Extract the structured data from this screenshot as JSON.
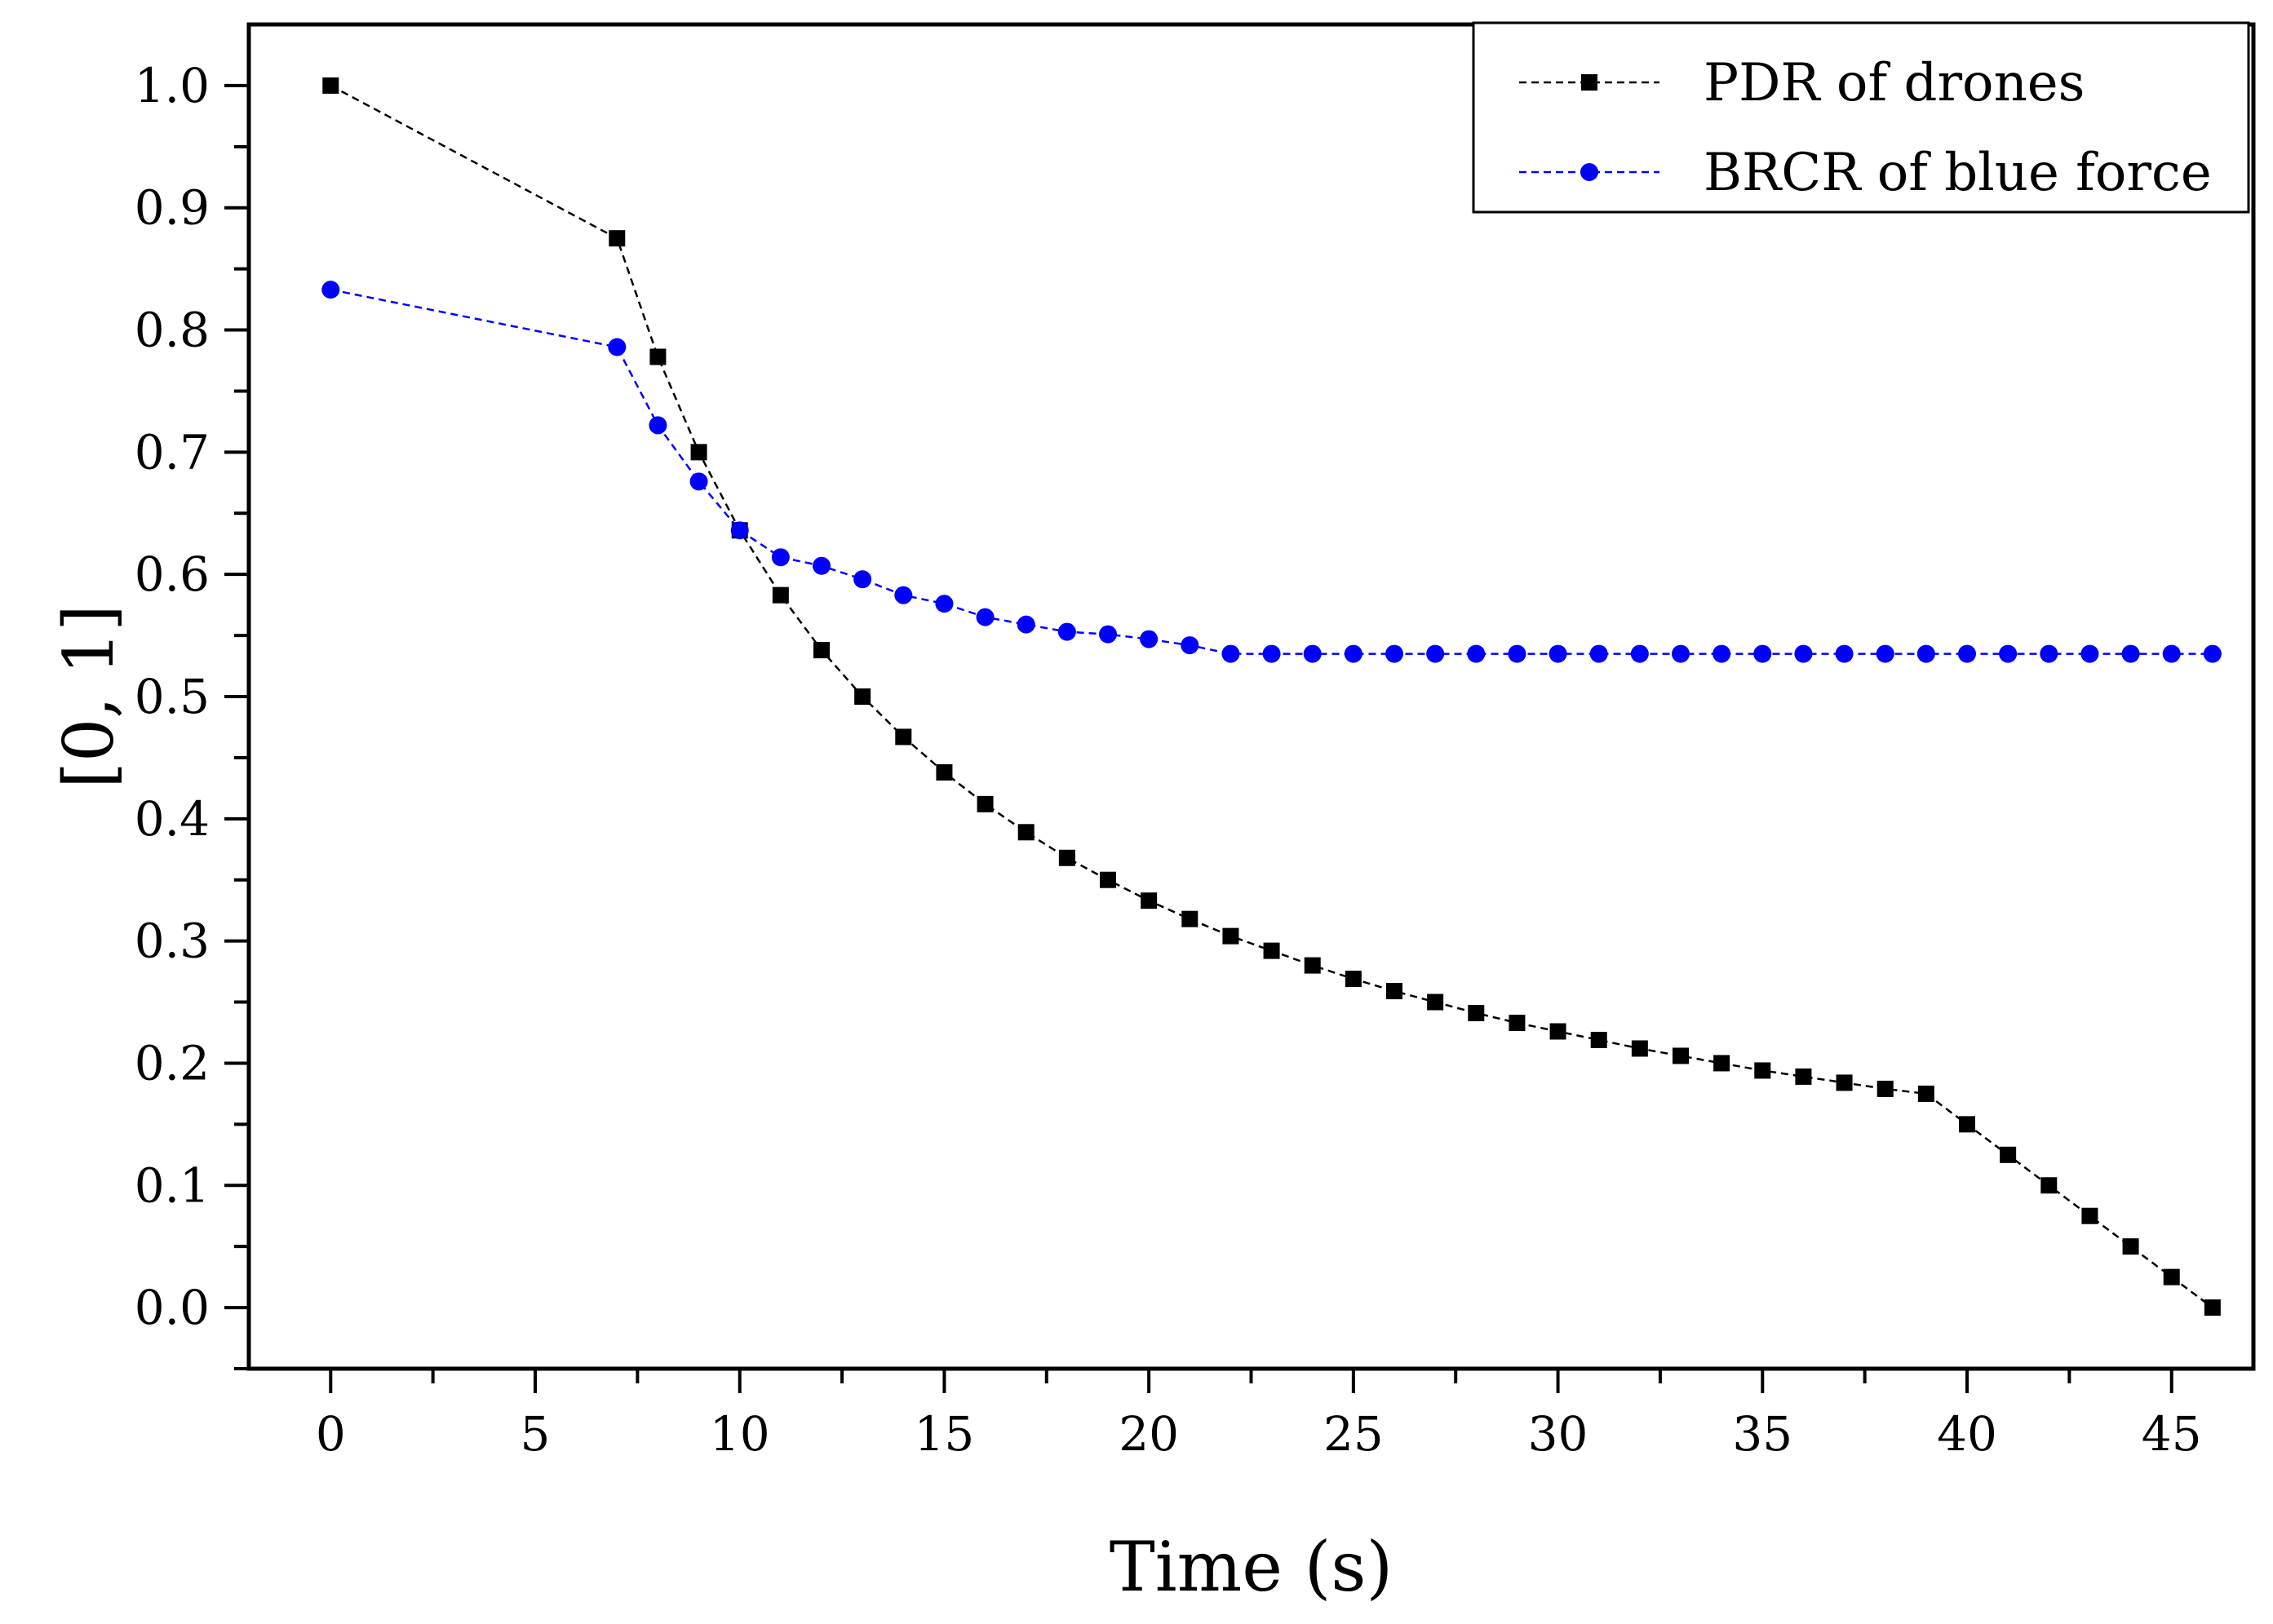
{
  "chart_data": {
    "type": "line",
    "xlabel": "Time (s)",
    "ylabel": "[0, 1]",
    "xlim": [
      -2,
      47
    ],
    "ylim": [
      -0.05,
      1.05
    ],
    "x_ticks": [
      0,
      5,
      10,
      15,
      20,
      25,
      30,
      35,
      40,
      45
    ],
    "x_tick_labels": [
      "0",
      "5",
      "10",
      "15",
      "20",
      "25",
      "30",
      "35",
      "40",
      "45"
    ],
    "y_ticks": [
      0.0,
      0.1,
      0.2,
      0.3,
      0.4,
      0.5,
      0.6,
      0.7,
      0.8,
      0.9,
      1.0
    ],
    "y_tick_labels": [
      "0.0",
      "0.1",
      "0.2",
      "0.3",
      "0.4",
      "0.5",
      "0.6",
      "0.7",
      "0.8",
      "0.9",
      "1.0"
    ],
    "legend_position": "top-right",
    "series": [
      {
        "name": "PDR of drones",
        "color": "#000000",
        "marker": "square",
        "line_style": "dashed",
        "x": [
          0,
          7,
          8,
          9,
          10,
          11,
          12,
          13,
          14,
          15,
          16,
          17,
          18,
          19,
          20,
          21,
          22,
          23,
          24,
          25,
          26,
          27,
          28,
          29,
          30,
          31,
          32,
          33,
          34,
          35,
          36,
          37,
          38,
          39,
          40,
          41,
          42,
          43,
          44,
          45,
          46
        ],
        "values": [
          1.0,
          0.875,
          0.778,
          0.7,
          0.636,
          0.583,
          0.538,
          0.5,
          0.467,
          0.438,
          0.412,
          0.389,
          0.368,
          0.35,
          0.333,
          0.318,
          0.304,
          0.292,
          0.28,
          0.269,
          0.259,
          0.25,
          0.241,
          0.233,
          0.226,
          0.219,
          0.212,
          0.206,
          0.2,
          0.194,
          0.189,
          0.184,
          0.179,
          0.175,
          0.15,
          0.125,
          0.1,
          0.075,
          0.05,
          0.025,
          0.0
        ]
      },
      {
        "name": "BRCR of blue force",
        "color": "#0000ff",
        "marker": "circle",
        "line_style": "dashed",
        "x": [
          0,
          7,
          8,
          9,
          10,
          11,
          12,
          13,
          14,
          15,
          16,
          17,
          18,
          19,
          20,
          21,
          22,
          23,
          24,
          25,
          26,
          27,
          28,
          29,
          30,
          31,
          32,
          33,
          34,
          35,
          36,
          37,
          38,
          39,
          40,
          41,
          42,
          43,
          44,
          45,
          46
        ],
        "values": [
          0.833,
          0.786,
          0.722,
          0.676,
          0.636,
          0.614,
          0.607,
          0.596,
          0.583,
          0.576,
          0.565,
          0.559,
          0.553,
          0.551,
          0.547,
          0.542,
          0.535,
          0.535,
          0.535,
          0.535,
          0.535,
          0.535,
          0.535,
          0.535,
          0.535,
          0.535,
          0.535,
          0.535,
          0.535,
          0.535,
          0.535,
          0.535,
          0.535,
          0.535,
          0.535,
          0.535,
          0.535,
          0.535,
          0.535,
          0.535,
          0.535
        ]
      }
    ]
  }
}
